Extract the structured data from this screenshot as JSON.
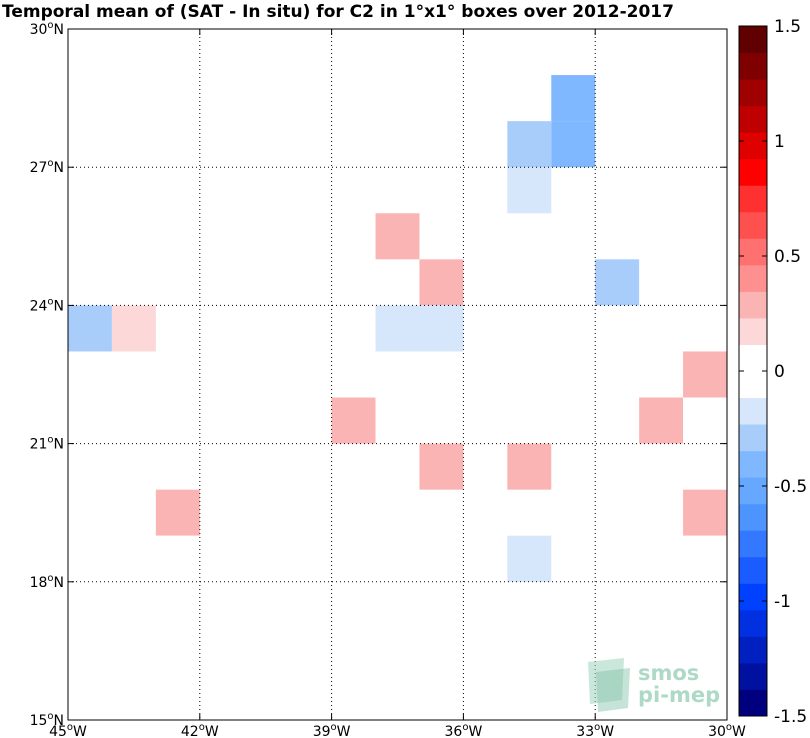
{
  "title": "Temporal mean of (SAT - In situ) for C2 in 1°x1° boxes over 2012-2017",
  "chart_data": {
    "type": "heatmap",
    "title": "Temporal mean of (SAT - In situ) for C2 in 1°x1° boxes over 2012-2017",
    "x_range_lon": [
      -45,
      -30
    ],
    "y_range_lat": [
      15,
      30
    ],
    "grid": true,
    "x_ticks": [
      {
        "value": -45,
        "label": "45°W"
      },
      {
        "value": -42,
        "label": "42°W"
      },
      {
        "value": -39,
        "label": "39°W"
      },
      {
        "value": -36,
        "label": "36°W"
      },
      {
        "value": -33,
        "label": "33°W"
      },
      {
        "value": -30,
        "label": "30°W"
      }
    ],
    "y_ticks": [
      {
        "value": 15,
        "label": "15°N"
      },
      {
        "value": 18,
        "label": "18°N"
      },
      {
        "value": 21,
        "label": "21°N"
      },
      {
        "value": 24,
        "label": "24°N"
      },
      {
        "value": 27,
        "label": "27°N"
      },
      {
        "value": 30,
        "label": "30°N"
      }
    ],
    "colorbar": {
      "min": -1.5,
      "max": 1.5,
      "ticks": [
        {
          "value": 1.5,
          "label": "1.5"
        },
        {
          "value": 1,
          "label": "1"
        },
        {
          "value": 0.5,
          "label": "0.5"
        },
        {
          "value": 0,
          "label": "0"
        },
        {
          "value": -0.5,
          "label": "-0.5"
        },
        {
          "value": -1,
          "label": "-1"
        },
        {
          "value": -1.5,
          "label": "-1.5"
        }
      ],
      "colors_low_to_high": [
        "#00007f",
        "#00109f",
        "#0020bf",
        "#0030df",
        "#0040ff",
        "#1a5cff",
        "#3378ff",
        "#4d94ff",
        "#66a8ff",
        "#80b8ff",
        "#a8cdfb",
        "#d6e6fb",
        "#ffffff",
        "#ffffff",
        "#fcd8d8",
        "#fbb4b4",
        "#ff9090",
        "#ff7070",
        "#ff5050",
        "#ff3030",
        "#ff0000",
        "#df0000",
        "#bf0000",
        "#9f0000",
        "#7f0000",
        "#600000"
      ]
    },
    "cells": [
      {
        "lon": -39.5,
        "lat": 29.5,
        "value": 0.1
      },
      {
        "lon": -32.5,
        "lat": 29.5,
        "value": -0.1
      },
      {
        "lon": -34.5,
        "lat": 28.5,
        "value": -0.1
      },
      {
        "lon": -33.5,
        "lat": 28.5,
        "value": -0.35
      },
      {
        "lon": -34.5,
        "lat": 27.5,
        "value": -0.25
      },
      {
        "lon": -33.5,
        "lat": 27.5,
        "value": -0.45
      },
      {
        "lon": -44.5,
        "lat": 26.5,
        "value": 0.1
      },
      {
        "lon": -34.5,
        "lat": 26.5,
        "value": -0.2
      },
      {
        "lon": -30.5,
        "lat": 26.5,
        "value": -0.1
      },
      {
        "lon": -37.5,
        "lat": 25.5,
        "value": 0.25
      },
      {
        "lon": -35.5,
        "lat": 25.5,
        "value": -0.1
      },
      {
        "lon": -36.5,
        "lat": 24.5,
        "value": 0.25
      },
      {
        "lon": -35.5,
        "lat": 24.5,
        "value": 0.1
      },
      {
        "lon": -34.5,
        "lat": 24.5,
        "value": 0.1
      },
      {
        "lon": -32.5,
        "lat": 24.5,
        "value": -0.25
      },
      {
        "lon": -44.5,
        "lat": 23.5,
        "value": -0.25
      },
      {
        "lon": -43.5,
        "lat": 23.5,
        "value": 0.15
      },
      {
        "lon": -41.5,
        "lat": 23.5,
        "value": -0.1
      },
      {
        "lon": -37.5,
        "lat": 23.5,
        "value": -0.2
      },
      {
        "lon": -36.5,
        "lat": 23.5,
        "value": -0.2
      },
      {
        "lon": -30.5,
        "lat": 23.5,
        "value": 0.1
      },
      {
        "lon": -39.5,
        "lat": 22.5,
        "value": 0.1
      },
      {
        "lon": -30.5,
        "lat": 22.5,
        "value": 0.25
      },
      {
        "lon": -39.5,
        "lat": 21.5,
        "value": 0.1
      },
      {
        "lon": -38.5,
        "lat": 21.5,
        "value": 0.25
      },
      {
        "lon": -37.5,
        "lat": 21.5,
        "value": 0.1
      },
      {
        "lon": -36.5,
        "lat": 21.5,
        "value": 0.1
      },
      {
        "lon": -31.5,
        "lat": 21.5,
        "value": 0.25
      },
      {
        "lon": -30.5,
        "lat": 21.5,
        "value": 0.1
      },
      {
        "lon": -40.5,
        "lat": 20.5,
        "value": 0.1
      },
      {
        "lon": -36.5,
        "lat": 20.5,
        "value": 0.25
      },
      {
        "lon": -35.5,
        "lat": 20.5,
        "value": 0.1
      },
      {
        "lon": -34.5,
        "lat": 20.5,
        "value": 0.3
      },
      {
        "lon": -31.5,
        "lat": 20.5,
        "value": 0.1
      },
      {
        "lon": -42.5,
        "lat": 19.5,
        "value": 0.25
      },
      {
        "lon": -33.5,
        "lat": 19.5,
        "value": 0.1
      },
      {
        "lon": -30.5,
        "lat": 19.5,
        "value": 0.25
      },
      {
        "lon": -42.5,
        "lat": 18.5,
        "value": 0.1
      },
      {
        "lon": -34.5,
        "lat": 18.5,
        "value": -0.2
      },
      {
        "lon": -31.5,
        "lat": 18.5,
        "value": 0.1
      },
      {
        "lon": -30.5,
        "lat": 18.5,
        "value": 0.1
      },
      {
        "lon": -42.5,
        "lat": 17.5,
        "value": 0.1
      },
      {
        "lon": -43.5,
        "lat": 16.5,
        "value": 0.1
      },
      {
        "lon": -36.5,
        "lat": 16.5,
        "value": -0.1
      },
      {
        "lon": -32.5,
        "lat": 16.5,
        "value": 0.1
      },
      {
        "lon": -33.5,
        "lat": 15.5,
        "value": -0.1
      },
      {
        "lon": -32.5,
        "lat": 15.5,
        "value": -0.1
      },
      {
        "lon": -31.5,
        "lat": 15.5,
        "value": -0.1
      },
      {
        "lon": -30.5,
        "lat": 15.5,
        "value": -0.1
      }
    ]
  },
  "watermark": {
    "line1": "smos",
    "line2": "pi-mep"
  }
}
